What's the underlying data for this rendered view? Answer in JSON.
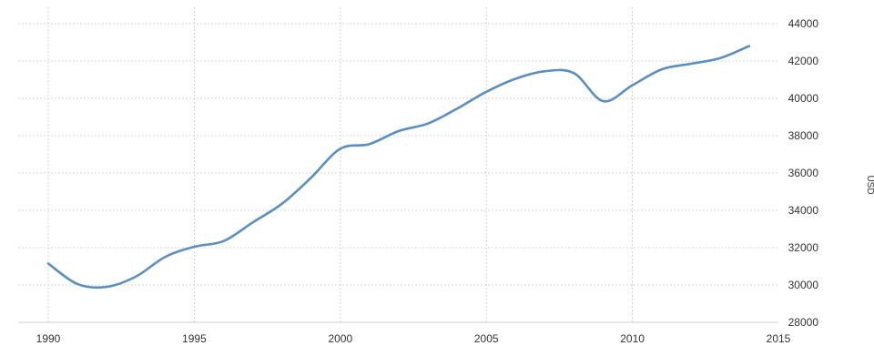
{
  "chart_data": {
    "type": "line",
    "title": "",
    "xlabel": "",
    "ylabel": "USD",
    "xlim": [
      1990,
      2015
    ],
    "ylim": [
      28000,
      44000
    ],
    "grid": true,
    "legend": "none",
    "x_ticks": [
      "1990",
      "1995",
      "2000",
      "2005",
      "2010",
      "2015"
    ],
    "y_ticks": [
      "28000",
      "30000",
      "32000",
      "34000",
      "36000",
      "38000",
      "40000",
      "42000",
      "44000"
    ],
    "y_axis_side": "right",
    "series": [
      {
        "color": "#5b8fc0",
        "x": [
          1990,
          1991,
          1992,
          1993,
          1994,
          1995,
          1996,
          1997,
          1998,
          1999,
          2000,
          2001,
          2002,
          2003,
          2004,
          2005,
          2006,
          2007,
          2008,
          2009,
          2010,
          2011,
          2012,
          2013,
          2014
        ],
        "values": [
          31150,
          30050,
          29900,
          30450,
          31500,
          32050,
          32350,
          33350,
          34350,
          35750,
          37300,
          37550,
          38250,
          38650,
          39450,
          40350,
          41050,
          41450,
          41350,
          39850,
          40700,
          41550,
          41850,
          42150,
          42800
        ]
      }
    ]
  }
}
